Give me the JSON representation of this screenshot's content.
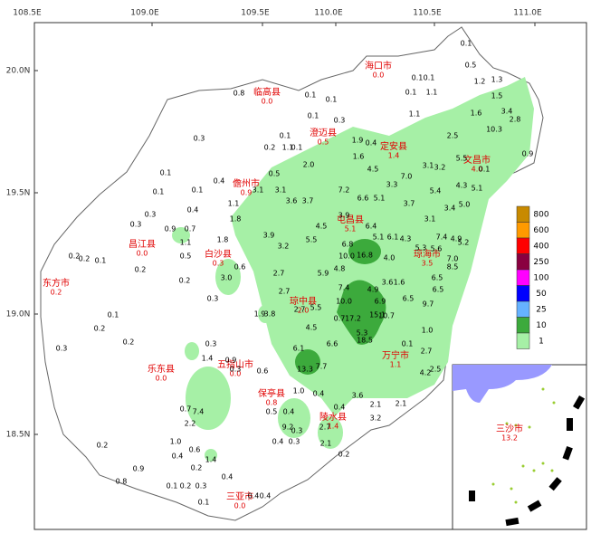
{
  "map": {
    "lon_ticks": [
      {
        "value": 108.5,
        "label": "108.5E"
      },
      {
        "value": 109.0,
        "label": "109.0E"
      },
      {
        "value": 109.5,
        "label": "109.5E"
      },
      {
        "value": 110.0,
        "label": "110.0E"
      },
      {
        "value": 110.5,
        "label": "110.5E"
      },
      {
        "value": 111.0,
        "label": "111.0E"
      }
    ],
    "lat_ticks": [
      {
        "value": 20.0,
        "label": "20.0N"
      },
      {
        "value": 19.5,
        "label": "19.5N"
      },
      {
        "value": 19.0,
        "label": "19.0N"
      },
      {
        "value": 18.5,
        "label": "18.5N"
      }
    ],
    "cities": [
      {
        "name": "海口市",
        "value": {
          "value": 0,
          "label": "0.0"
        }
      },
      {
        "name": "临高县",
        "value": {
          "value": 0,
          "label": "0.0"
        }
      },
      {
        "name": "澄迈县",
        "value": 0.5
      },
      {
        "name": "定安县",
        "value": 1.4
      },
      {
        "name": "文昌市",
        "value": {
          "value": 4,
          "label": "4.0"
        }
      },
      {
        "name": "儋州市",
        "value": 0.9
      },
      {
        "name": "屯昌县",
        "value": 5.1
      },
      {
        "name": "白沙县",
        "value": 0.3
      },
      {
        "name": "昌江县",
        "value": {
          "value": 0,
          "label": "0.0"
        }
      },
      {
        "name": "琼海市",
        "value": 3.5
      },
      {
        "name": "东方市",
        "value": 0.2
      },
      {
        "name": "琼中县",
        "value": {
          "value": 2,
          "label": "2.0"
        }
      },
      {
        "name": "万宁市",
        "value": 1.1
      },
      {
        "name": "五指山市",
        "value": {
          "value": 0,
          "label": "0.0"
        }
      },
      {
        "name": "乐东县",
        "value": {
          "value": 0,
          "label": "0.0"
        }
      },
      {
        "name": "保亭县",
        "value": 0.8
      },
      {
        "name": "陵水县",
        "value": 1.4
      },
      {
        "name": "三亚市",
        "value": {
          "value": 0,
          "label": "0.0"
        }
      },
      {
        "name": "三沙市",
        "value": 13.2
      }
    ],
    "stations": [
      0.8,
      0.3,
      0.1,
      0.1,
      0.4,
      0.1,
      0.4,
      0.3,
      0.3,
      0.7,
      0.9,
      1.1,
      1.8,
      1.8,
      1.1,
      3.1,
      3.1,
      3.6,
      3.7,
      0.5,
      {
        "value": 2,
        "label": "2.0"
      },
      3.9,
      3.2,
      5.5,
      4.5,
      7.2,
      6.6,
      5.1,
      4.5,
      3.3,
      {
        "value": 7,
        "label": "7.0"
      },
      3.1,
      3.2,
      1.6,
      0.4,
      1.9,
      3.9,
      6.4,
      6.8,
      {
        "value": 10,
        "label": "10.0"
      },
      16.8,
      {
        "value": 4,
        "label": "4.0"
      },
      5.1,
      6.1,
      4.3,
      5.3,
      5.6,
      7.4,
      4.9,
      5.2,
      {
        "value": 7,
        "label": "7.0"
      },
      8.5,
      6.5,
      6.5,
      5.9,
      4.8,
      7.4,
      4.9,
      3.6,
      1.6,
      {
        "value": 10,
        "label": "10.0"
      },
      6.9,
      6.5,
      9.7,
      15.1,
      17.2,
      10.7,
      18.5,
      5.3,
      0.7,
      6.6,
      13.3,
      7.7,
      6.1,
      4.5,
      2.7,
      2.7,
      3.8,
      1.9,
      2.7,
      5.5,
      0.1,
      {
        "value": 1,
        "label": "1.0"
      },
      2.7,
      4.2,
      2.5,
      3.6,
      2.1,
      2.1,
      3.2,
      2.7,
      2.1,
      0.2,
      0.4,
      0.4,
      {
        "value": 1,
        "label": "1.0"
      },
      0.4,
      9.2,
      0.3,
      0.4,
      0.3,
      0.5,
      0.6,
      0.3,
      1.4,
      0.7,
      7.4,
      2.2,
      1.4,
      0.6,
      {
        "value": 1,
        "label": "1.0"
      },
      0.4,
      0.2,
      0.9,
      0.8,
      0.2,
      0.4,
      0.1,
      0.3,
      0.2,
      0.1,
      0.4,
      0.4,
      0.3,
      0.2,
      0.2,
      0.1,
      0.2,
      0.2,
      0.1,
      0.2,
      0.2,
      0.5,
      {
        "value": 3,
        "label": "3.0"
      },
      0.6,
      0.3,
      0.3,
      0.9,
      2.5,
      1.3,
      1.5,
      3.4,
      2.8,
      10.3,
      0.9,
      0.5,
      1.2,
      1.6,
      5.5,
      0.1,
      4.3,
      5.1,
      {
        "value": 5,
        "label": "5.0"
      },
      3.4,
      5.4,
      3.7,
      3.1,
      0.3,
      0.1,
      0.1,
      0.1,
      0.1,
      0.2,
      1.1,
      0.1,
      1.1,
      0.1,
      0.1,
      0.1,
      1.1,
      0.1
    ],
    "legend": [
      {
        "value": 800,
        "color": "#c88a00"
      },
      {
        "value": 600,
        "color": "#ff9a00"
      },
      {
        "value": 400,
        "color": "#ff0000"
      },
      {
        "value": 250,
        "color": "#8a0040"
      },
      {
        "value": 100,
        "color": "#ff00ff"
      },
      {
        "value": 50,
        "color": "#0000ff"
      },
      {
        "value": 25,
        "color": "#66b2ff"
      },
      {
        "value": 10,
        "color": "#3caa3c"
      },
      {
        "value": 1,
        "color": "#a6f0a6"
      }
    ]
  }
}
